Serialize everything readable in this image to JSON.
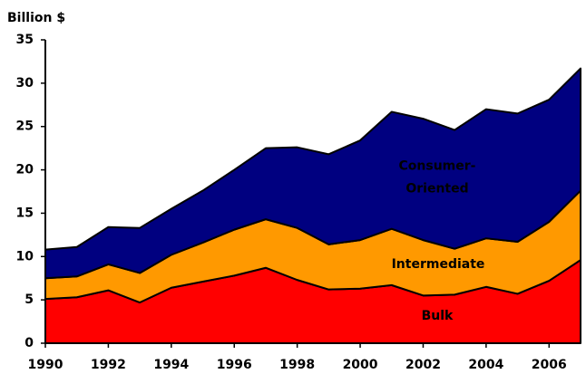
{
  "chart_data": {
    "type": "stacked_area",
    "title": "Billion $",
    "x": [
      1990,
      1991,
      1992,
      1993,
      1994,
      1995,
      1996,
      1997,
      1998,
      1999,
      2000,
      2001,
      2002,
      2003,
      2004,
      2005,
      2006,
      2007
    ],
    "series": [
      {
        "name": "Bulk",
        "color": "#ff0000",
        "values": [
          5.1,
          5.3,
          6.1,
          4.7,
          6.4,
          7.1,
          7.8,
          8.7,
          7.3,
          6.2,
          6.3,
          6.7,
          5.5,
          5.6,
          6.5,
          5.7,
          7.2,
          9.6
        ]
      },
      {
        "name": "Intermediate",
        "color": "#ff9900",
        "values": [
          2.4,
          2.4,
          3.0,
          3.4,
          3.8,
          4.5,
          5.3,
          5.6,
          6.0,
          5.2,
          5.6,
          6.5,
          6.4,
          5.3,
          5.6,
          6.0,
          6.8,
          8.0
        ]
      },
      {
        "name": "Consumer-Oriented",
        "color": "#000080",
        "values": [
          3.3,
          3.4,
          4.3,
          5.2,
          5.3,
          6.0,
          6.9,
          8.2,
          9.3,
          10.4,
          11.5,
          13.5,
          14.0,
          13.7,
          14.9,
          14.8,
          14.1,
          14.1
        ]
      }
    ],
    "xlim": [
      1990,
      2007
    ],
    "xticks": [
      1990,
      1992,
      1994,
      1996,
      1998,
      2000,
      2002,
      2004,
      2006
    ],
    "ylim": [
      0,
      35
    ],
    "yticks": [
      0,
      5,
      10,
      15,
      20,
      25,
      30,
      35
    ]
  }
}
